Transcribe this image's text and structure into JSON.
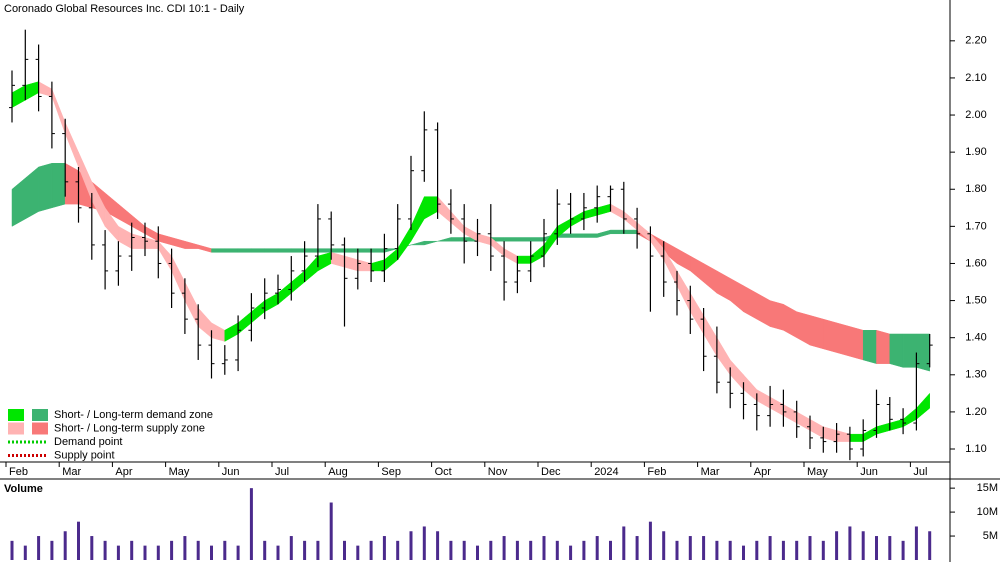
{
  "chart_data": [
    {
      "type": "ohlc",
      "title": "Coronado Global Resources Inc. CDI 10:1 - Daily",
      "categories": [
        "Feb",
        null,
        null,
        null,
        "Mar",
        null,
        null,
        null,
        "Apr",
        null,
        null,
        null,
        "May",
        null,
        null,
        null,
        "Jun",
        null,
        null,
        null,
        "Jul",
        null,
        null,
        null,
        "Aug",
        null,
        null,
        null,
        "Sep",
        null,
        null,
        null,
        "Oct",
        null,
        null,
        null,
        "Nov",
        null,
        null,
        null,
        "Dec",
        null,
        null,
        null,
        "2024",
        null,
        null,
        null,
        "Feb",
        null,
        null,
        null,
        "Mar",
        null,
        null,
        null,
        "Apr",
        null,
        null,
        null,
        "May",
        null,
        null,
        null,
        "Jun",
        null,
        null,
        null,
        "Jul",
        null
      ],
      "open": [
        2.02,
        2.08,
        2.15,
        2.05,
        1.95,
        1.82,
        1.75,
        1.65,
        1.58,
        1.62,
        1.67,
        1.66,
        1.6,
        1.52,
        1.45,
        1.38,
        1.33,
        1.34,
        1.42,
        1.48,
        1.52,
        1.53,
        1.58,
        1.62,
        1.72,
        1.65,
        1.56,
        1.6,
        1.58,
        1.64,
        1.72,
        1.85,
        1.96,
        1.76,
        1.72,
        1.66,
        1.68,
        1.62,
        1.55,
        1.58,
        1.62,
        1.68,
        1.76,
        1.72,
        1.75,
        1.78,
        1.8,
        1.72,
        1.68,
        1.62,
        1.55,
        1.5,
        1.45,
        1.35,
        1.28,
        1.25,
        1.22,
        1.19,
        1.22,
        1.2,
        1.16,
        1.13,
        1.12,
        1.14,
        1.1,
        1.15,
        1.22,
        1.18,
        1.17,
        1.33
      ],
      "high": [
        2.12,
        2.23,
        2.19,
        2.09,
        1.99,
        1.86,
        1.79,
        1.69,
        1.66,
        1.71,
        1.71,
        1.7,
        1.64,
        1.56,
        1.49,
        1.42,
        1.38,
        1.46,
        1.52,
        1.56,
        1.57,
        1.62,
        1.66,
        1.76,
        1.74,
        1.67,
        1.64,
        1.64,
        1.68,
        1.76,
        1.89,
        2.01,
        1.98,
        1.8,
        1.76,
        1.72,
        1.76,
        1.66,
        1.62,
        1.66,
        1.72,
        1.8,
        1.79,
        1.79,
        1.81,
        1.81,
        1.82,
        1.75,
        1.7,
        1.66,
        1.58,
        1.54,
        1.48,
        1.43,
        1.32,
        1.28,
        1.25,
        1.27,
        1.26,
        1.23,
        1.19,
        1.16,
        1.17,
        1.16,
        1.18,
        1.26,
        1.24,
        1.21,
        1.36,
        1.41
      ],
      "low": [
        1.98,
        2.04,
        2.01,
        1.91,
        1.78,
        1.71,
        1.61,
        1.53,
        1.54,
        1.58,
        1.62,
        1.56,
        1.48,
        1.41,
        1.34,
        1.29,
        1.3,
        1.31,
        1.39,
        1.45,
        1.49,
        1.5,
        1.55,
        1.59,
        1.61,
        1.43,
        1.53,
        1.55,
        1.55,
        1.61,
        1.69,
        1.82,
        1.72,
        1.68,
        1.6,
        1.62,
        1.58,
        1.5,
        1.52,
        1.55,
        1.59,
        1.65,
        1.68,
        1.69,
        1.71,
        1.74,
        1.68,
        1.64,
        1.47,
        1.51,
        1.46,
        1.41,
        1.31,
        1.25,
        1.21,
        1.18,
        1.15,
        1.16,
        1.16,
        1.13,
        1.1,
        1.09,
        1.09,
        1.07,
        1.08,
        1.13,
        1.15,
        1.14,
        1.15,
        1.32
      ],
      "close": [
        2.08,
        2.15,
        2.05,
        1.95,
        1.82,
        1.75,
        1.65,
        1.58,
        1.62,
        1.67,
        1.66,
        1.6,
        1.52,
        1.45,
        1.38,
        1.33,
        1.34,
        1.42,
        1.48,
        1.52,
        1.53,
        1.58,
        1.62,
        1.72,
        1.65,
        1.56,
        1.6,
        1.58,
        1.64,
        1.72,
        1.85,
        1.96,
        1.76,
        1.72,
        1.66,
        1.68,
        1.62,
        1.55,
        1.58,
        1.62,
        1.68,
        1.76,
        1.72,
        1.75,
        1.78,
        1.8,
        1.72,
        1.68,
        1.62,
        1.55,
        1.5,
        1.45,
        1.35,
        1.28,
        1.25,
        1.22,
        1.19,
        1.22,
        1.2,
        1.16,
        1.13,
        1.12,
        1.14,
        1.1,
        1.15,
        1.22,
        1.18,
        1.17,
        1.33,
        1.38
      ],
      "bar_color": "#000000",
      "bands": [
        {
          "upper": [
            1.8,
            1.83,
            1.86,
            1.87,
            1.87,
            1.85,
            1.82,
            1.79,
            1.76,
            1.73,
            1.7,
            1.68,
            1.67,
            1.66,
            1.65,
            1.64,
            1.64,
            1.64,
            1.64,
            1.64,
            1.64,
            1.64,
            1.64,
            1.64,
            1.64,
            1.64,
            1.64,
            1.64,
            1.64,
            1.64,
            1.65,
            1.66,
            1.66,
            1.67,
            1.67,
            1.67,
            1.67,
            1.67,
            1.67,
            1.67,
            1.67,
            1.68,
            1.68,
            1.68,
            1.68,
            1.69,
            1.69,
            1.69,
            1.68,
            1.66,
            1.64,
            1.62,
            1.6,
            1.58,
            1.56,
            1.54,
            1.52,
            1.5,
            1.49,
            1.47,
            1.46,
            1.45,
            1.44,
            1.43,
            1.42,
            1.42,
            1.41,
            1.41,
            1.41,
            1.41
          ],
          "lower": [
            1.7,
            1.72,
            1.74,
            1.75,
            1.76,
            1.76,
            1.75,
            1.74,
            1.72,
            1.7,
            1.68,
            1.66,
            1.65,
            1.64,
            1.64,
            1.63,
            1.63,
            1.63,
            1.63,
            1.63,
            1.63,
            1.63,
            1.63,
            1.63,
            1.63,
            1.63,
            1.63,
            1.63,
            1.63,
            1.64,
            1.65,
            1.65,
            1.66,
            1.66,
            1.66,
            1.66,
            1.66,
            1.66,
            1.66,
            1.66,
            1.66,
            1.67,
            1.67,
            1.67,
            1.67,
            1.68,
            1.68,
            1.68,
            1.66,
            1.63,
            1.6,
            1.58,
            1.55,
            1.52,
            1.5,
            1.47,
            1.45,
            1.43,
            1.42,
            1.4,
            1.38,
            1.37,
            1.36,
            1.35,
            1.34,
            1.33,
            1.33,
            1.32,
            1.32,
            1.31
          ],
          "rising_color": "#3cb371",
          "falling_color": "#f87878"
        },
        {
          "upper": [
            2.06,
            2.08,
            2.09,
            2.07,
            1.98,
            1.9,
            1.82,
            1.75,
            1.7,
            1.68,
            1.67,
            1.66,
            1.62,
            1.55,
            1.48,
            1.44,
            1.42,
            1.44,
            1.47,
            1.5,
            1.52,
            1.55,
            1.58,
            1.62,
            1.63,
            1.62,
            1.61,
            1.6,
            1.61,
            1.64,
            1.7,
            1.78,
            1.78,
            1.74,
            1.7,
            1.68,
            1.67,
            1.64,
            1.62,
            1.62,
            1.65,
            1.7,
            1.72,
            1.74,
            1.75,
            1.76,
            1.74,
            1.71,
            1.68,
            1.64,
            1.58,
            1.52,
            1.46,
            1.4,
            1.34,
            1.3,
            1.26,
            1.24,
            1.22,
            1.2,
            1.18,
            1.16,
            1.15,
            1.14,
            1.14,
            1.16,
            1.17,
            1.18,
            1.21,
            1.25
          ],
          "lower": [
            2.02,
            2.04,
            2.06,
            2.05,
            1.95,
            1.86,
            1.77,
            1.7,
            1.66,
            1.64,
            1.64,
            1.64,
            1.58,
            1.5,
            1.43,
            1.4,
            1.39,
            1.41,
            1.44,
            1.47,
            1.49,
            1.52,
            1.55,
            1.58,
            1.6,
            1.59,
            1.58,
            1.58,
            1.58,
            1.61,
            1.66,
            1.72,
            1.74,
            1.71,
            1.68,
            1.66,
            1.65,
            1.62,
            1.6,
            1.6,
            1.62,
            1.67,
            1.7,
            1.72,
            1.73,
            1.74,
            1.72,
            1.69,
            1.66,
            1.61,
            1.54,
            1.47,
            1.41,
            1.35,
            1.3,
            1.26,
            1.23,
            1.21,
            1.19,
            1.17,
            1.15,
            1.13,
            1.12,
            1.12,
            1.12,
            1.14,
            1.15,
            1.16,
            1.18,
            1.21
          ],
          "rising_color": "#00e600",
          "falling_color": "#ffb3b3"
        }
      ],
      "ylim": [
        1.065,
        2.31
      ],
      "yticks": [
        {
          "value": 1.1,
          "label": "1.10"
        },
        {
          "value": 1.2,
          "label": "1.20"
        },
        {
          "value": 1.3,
          "label": "1.30"
        },
        {
          "value": 1.4,
          "label": "1.40"
        },
        {
          "value": 1.5,
          "label": "1.50"
        },
        {
          "value": 1.6,
          "label": "1.60"
        },
        {
          "value": 1.7,
          "label": "1.70"
        },
        {
          "value": 1.8,
          "label": "1.80"
        },
        {
          "value": 1.9,
          "label": "1.90"
        },
        {
          "value": 2.0,
          "label": "2.00"
        },
        {
          "value": 2.1,
          "label": "2.10"
        },
        {
          "value": 2.2,
          "label": "2.20"
        }
      ],
      "legend": [
        {
          "label": "Short- / Long-term demand zone",
          "colors": [
            "#00e600",
            "#3cb371"
          ],
          "style": "zone"
        },
        {
          "label": "Short- / Long-term supply zone",
          "colors": [
            "#ffb3b3",
            "#f87878"
          ],
          "style": "zone"
        },
        {
          "label": "Demand point",
          "colors": [
            "#00cc00"
          ],
          "style": "dotted"
        },
        {
          "label": "Supply point",
          "colors": [
            "#cc0000"
          ],
          "style": "dotted"
        }
      ]
    },
    {
      "type": "bar",
      "title": "Volume",
      "title_color": "#660099",
      "color": "#4b2a8c",
      "values": [
        4000000,
        3000000,
        5000000,
        4000000,
        6000000,
        8000000,
        5000000,
        4000000,
        3000000,
        4000000,
        3000000,
        3000000,
        4000000,
        5000000,
        4000000,
        3000000,
        4000000,
        3000000,
        15000000,
        4000000,
        3000000,
        5000000,
        4000000,
        4000000,
        12000000,
        4000000,
        3000000,
        4000000,
        5000000,
        4000000,
        6000000,
        7000000,
        6000000,
        4000000,
        4000000,
        3000000,
        4000000,
        5000000,
        4000000,
        4000000,
        5000000,
        4000000,
        3000000,
        4000000,
        5000000,
        4000000,
        7000000,
        5000000,
        8000000,
        6000000,
        4000000,
        5000000,
        5000000,
        4000000,
        4000000,
        3000000,
        4000000,
        5000000,
        4000000,
        4000000,
        5000000,
        4000000,
        6000000,
        7000000,
        6000000,
        5000000,
        5000000,
        4000000,
        7000000,
        6000000
      ],
      "ylim": [
        0,
        16700000
      ],
      "yticks": [
        {
          "value": 5000000,
          "label": "5M"
        },
        {
          "value": 10000000,
          "label": "10M"
        },
        {
          "value": 15000000,
          "label": "15M"
        }
      ]
    }
  ]
}
